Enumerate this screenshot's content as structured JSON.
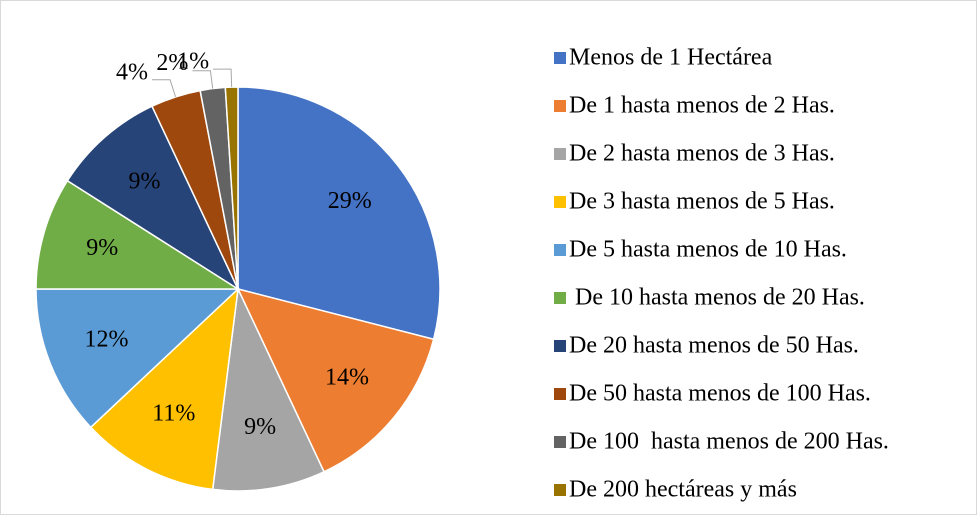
{
  "chart_data": {
    "type": "pie",
    "categories": [
      "Menos de 1 Hectárea",
      "De 1 hasta menos de 2 Has.",
      "De 2 hasta menos de 3 Has.",
      "De 3 hasta menos de 5 Has.",
      "De 5 hasta menos de 10 Has.",
      " De 10 hasta menos de 20 Has.",
      "De 20 hasta menos de 50 Has.",
      "De 50 hasta menos de 100 Has.",
      "De 100  hasta menos de 200 Has.",
      "De 200 hectáreas y más"
    ],
    "values": [
      29,
      14,
      9,
      11,
      12,
      9,
      9,
      4,
      2,
      1
    ],
    "value_labels": [
      "29%",
      "14%",
      "9%",
      "11%",
      "12%",
      "9%",
      "9%",
      "4%",
      "2%",
      "1%"
    ],
    "colors": [
      "#4472c4",
      "#ed7d31",
      "#a5a5a5",
      "#ffc000",
      "#5b9bd5",
      "#70ad47",
      "#264478",
      "#9e480e",
      "#636363",
      "#997300"
    ],
    "legend": "right"
  }
}
